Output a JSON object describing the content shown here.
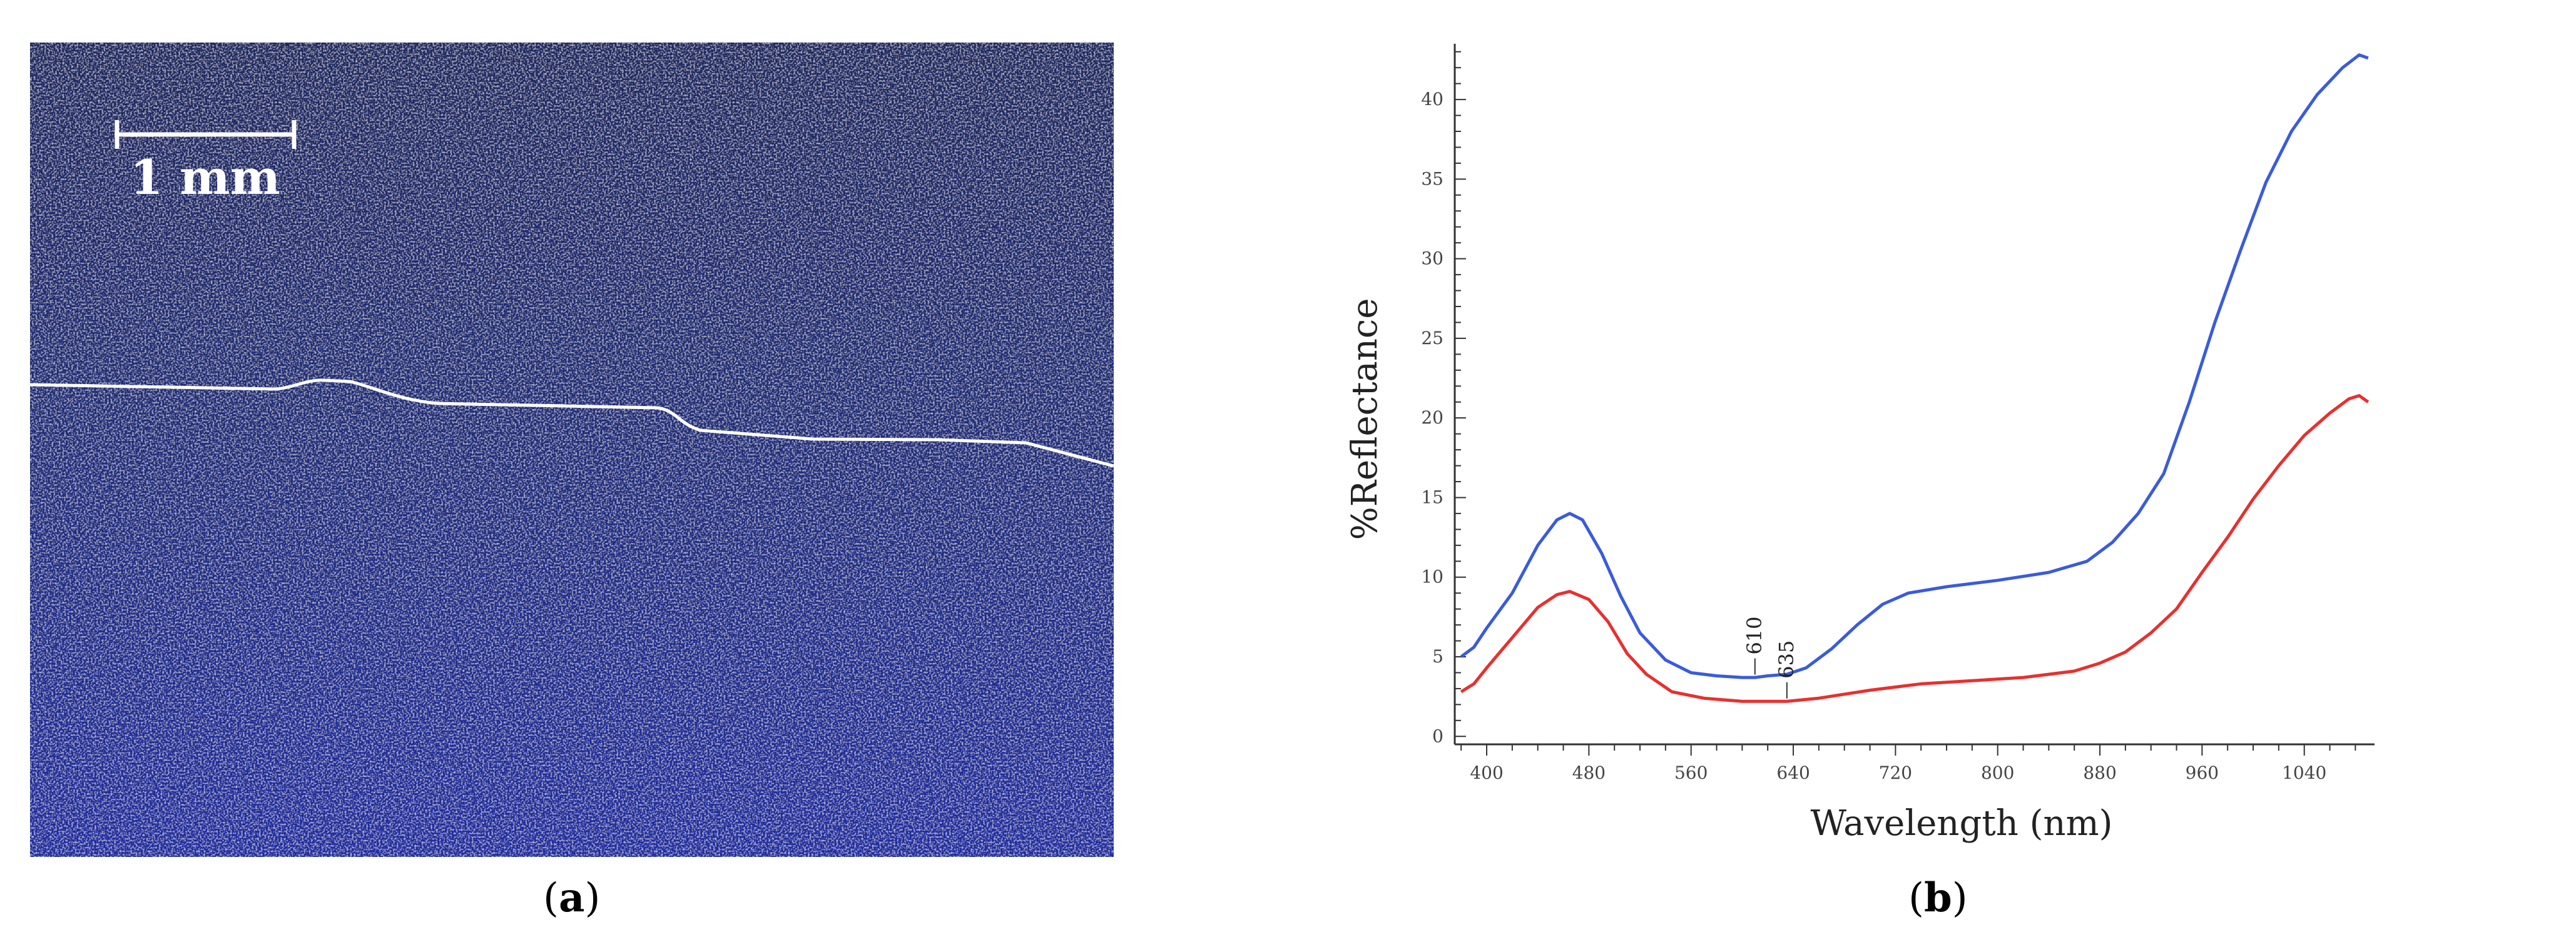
{
  "panels": {
    "a": {
      "open": "(",
      "letter": "a",
      "close": ")"
    },
    "b": {
      "open": "(",
      "letter": "b",
      "close": ")"
    }
  },
  "micrograph": {
    "scale_bar_label": "1 mm",
    "background_color": "#0f1c66",
    "boundary_line_color": "#ffffff"
  },
  "chart_data": {
    "type": "line",
    "title": "",
    "xlabel": "Wavelength (nm)",
    "ylabel": "%Reflectance",
    "xlim": [
      375,
      1095
    ],
    "ylim": [
      -0.5,
      43.5
    ],
    "xticks": [
      400,
      480,
      560,
      640,
      720,
      800,
      880,
      960,
      1040
    ],
    "yticks": [
      0,
      5,
      10,
      15,
      20,
      25,
      30,
      35,
      40
    ],
    "grid": false,
    "legend": "none",
    "annotations": [
      {
        "text": "610",
        "x": 610,
        "y": 3.8
      },
      {
        "text": "635",
        "x": 635,
        "y": 2.3
      }
    ],
    "series": [
      {
        "color": "#3a5bdc",
        "points": [
          [
            380,
            5.0
          ],
          [
            390,
            5.6
          ],
          [
            400,
            6.8
          ],
          [
            420,
            9.0
          ],
          [
            440,
            12.0
          ],
          [
            455,
            13.6
          ],
          [
            465,
            14.0
          ],
          [
            475,
            13.6
          ],
          [
            490,
            11.5
          ],
          [
            505,
            8.8
          ],
          [
            520,
            6.5
          ],
          [
            540,
            4.8
          ],
          [
            560,
            4.0
          ],
          [
            580,
            3.8
          ],
          [
            600,
            3.7
          ],
          [
            610,
            3.7
          ],
          [
            620,
            3.8
          ],
          [
            635,
            3.9
          ],
          [
            650,
            4.3
          ],
          [
            670,
            5.5
          ],
          [
            690,
            7.0
          ],
          [
            710,
            8.3
          ],
          [
            730,
            9.0
          ],
          [
            760,
            9.4
          ],
          [
            800,
            9.8
          ],
          [
            840,
            10.3
          ],
          [
            870,
            11.0
          ],
          [
            890,
            12.2
          ],
          [
            910,
            14.0
          ],
          [
            930,
            16.5
          ],
          [
            950,
            21.0
          ],
          [
            970,
            26.0
          ],
          [
            990,
            30.5
          ],
          [
            1010,
            34.8
          ],
          [
            1030,
            38.0
          ],
          [
            1050,
            40.3
          ],
          [
            1070,
            42.0
          ],
          [
            1083,
            42.8
          ],
          [
            1090,
            42.6
          ]
        ]
      },
      {
        "color": "#e8302f",
        "points": [
          [
            380,
            2.8
          ],
          [
            390,
            3.3
          ],
          [
            400,
            4.3
          ],
          [
            420,
            6.2
          ],
          [
            440,
            8.1
          ],
          [
            455,
            8.9
          ],
          [
            465,
            9.1
          ],
          [
            480,
            8.6
          ],
          [
            495,
            7.2
          ],
          [
            510,
            5.2
          ],
          [
            525,
            3.9
          ],
          [
            545,
            2.8
          ],
          [
            570,
            2.4
          ],
          [
            600,
            2.2
          ],
          [
            620,
            2.2
          ],
          [
            635,
            2.2
          ],
          [
            660,
            2.4
          ],
          [
            700,
            2.9
          ],
          [
            740,
            3.3
          ],
          [
            780,
            3.5
          ],
          [
            820,
            3.7
          ],
          [
            860,
            4.1
          ],
          [
            880,
            4.6
          ],
          [
            900,
            5.3
          ],
          [
            920,
            6.5
          ],
          [
            940,
            8.0
          ],
          [
            960,
            10.3
          ],
          [
            980,
            12.5
          ],
          [
            1000,
            14.9
          ],
          [
            1020,
            17.0
          ],
          [
            1040,
            18.9
          ],
          [
            1060,
            20.3
          ],
          [
            1075,
            21.2
          ],
          [
            1083,
            21.4
          ],
          [
            1090,
            21.0
          ]
        ]
      }
    ]
  }
}
